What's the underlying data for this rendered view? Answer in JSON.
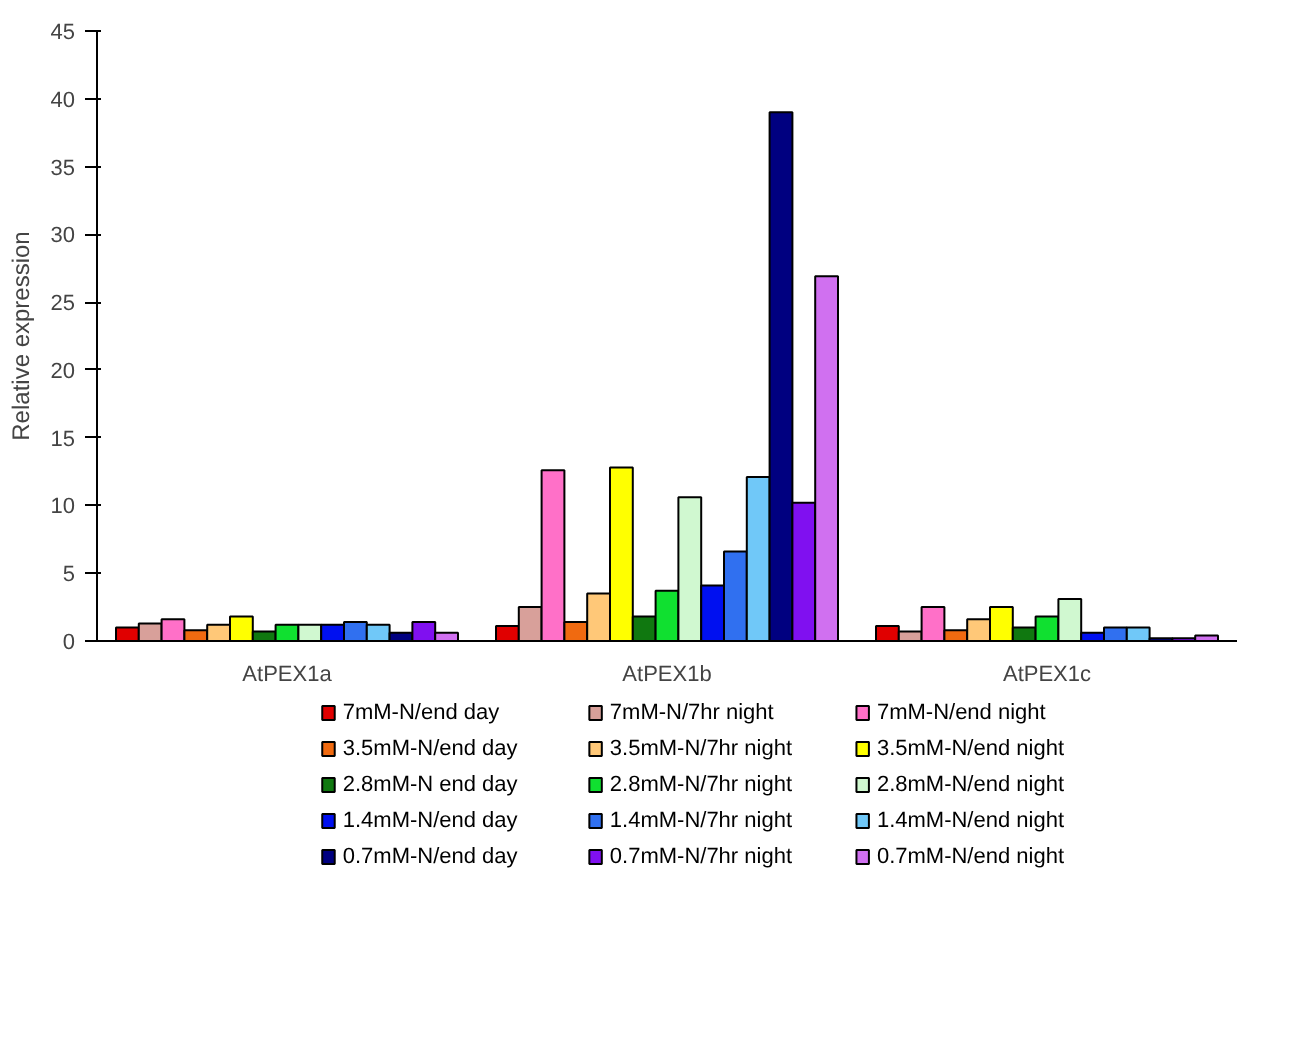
{
  "chart_data": {
    "type": "bar",
    "ylabel": "Relative expression",
    "categories": [
      "AtPEX1a",
      "AtPEX1b",
      "AtPEX1c"
    ],
    "ylim": [
      0,
      45
    ],
    "yticks": [
      0,
      5,
      10,
      15,
      20,
      25,
      30,
      35,
      40,
      45
    ],
    "grid": false,
    "legend": "bottom",
    "series": [
      {
        "name": "7mM-N/end day",
        "color": "#e00000",
        "values": [
          1.0,
          1.1,
          1.1
        ]
      },
      {
        "name": "7mM-N/7hr night",
        "color": "#d8a09a",
        "values": [
          1.3,
          2.5,
          0.7
        ]
      },
      {
        "name": "7mM-N/end night",
        "color": "#ff70c8",
        "values": [
          1.6,
          12.6,
          2.5
        ]
      },
      {
        "name": "3.5mM-N/end day",
        "color": "#f06a10",
        "values": [
          0.8,
          1.4,
          0.8
        ]
      },
      {
        "name": "3.5mM-N/7hr night",
        "color": "#ffc878",
        "values": [
          1.2,
          3.5,
          1.6
        ]
      },
      {
        "name": "3.5mM-N/end night",
        "color": "#ffff00",
        "values": [
          1.8,
          12.8,
          2.5
        ]
      },
      {
        "name": "2.8mM-N end day",
        "color": "#107810",
        "values": [
          0.7,
          1.8,
          1.0
        ]
      },
      {
        "name": "2.8mM-N/7hr night",
        "color": "#10e030",
        "values": [
          1.2,
          3.7,
          1.8
        ]
      },
      {
        "name": "2.8mM-N/end night",
        "color": "#d0f8d0",
        "values": [
          1.2,
          10.6,
          3.1
        ]
      },
      {
        "name": "1.4mM-N/end day",
        "color": "#0010f0",
        "values": [
          1.2,
          4.1,
          0.6
        ]
      },
      {
        "name": "1.4mM-N/7hr night",
        "color": "#3070f0",
        "values": [
          1.4,
          6.6,
          1.0
        ]
      },
      {
        "name": "1.4mM-N/end night",
        "color": "#70c8f8",
        "values": [
          1.2,
          12.1,
          1.0
        ]
      },
      {
        "name": "0.7mM-N/end day",
        "color": "#000080",
        "values": [
          0.6,
          39.0,
          0.2
        ]
      },
      {
        "name": "0.7mM-N/7hr night",
        "color": "#8010f0",
        "values": [
          1.4,
          10.2,
          0.2
        ]
      },
      {
        "name": "0.7mM-N/end night",
        "color": "#d070f0",
        "values": [
          0.6,
          26.9,
          0.4
        ]
      }
    ]
  }
}
